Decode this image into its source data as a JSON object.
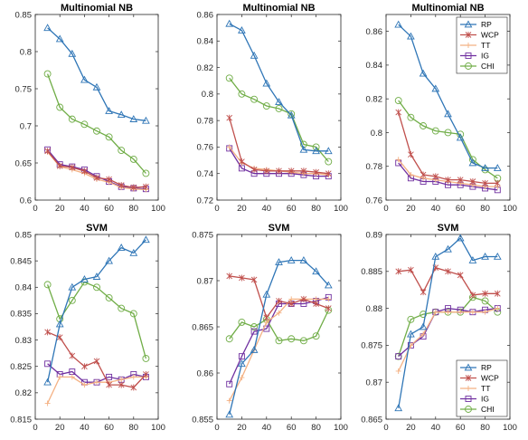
{
  "colors": {
    "RP": "#2E75B6",
    "WCP": "#C0504D",
    "TT": "#F4B183",
    "IG": "#7030A0",
    "CHI": "#70AD47"
  },
  "chart_data": [
    {
      "type": "line",
      "title": "Multinomial NB",
      "xlim": [
        0,
        100
      ],
      "xticks": [
        0,
        20,
        40,
        60,
        80,
        100
      ],
      "ylim": [
        0.6,
        0.85
      ],
      "yticks": [
        "0.6",
        "0.65",
        "0.7",
        "0.75",
        "0.8",
        "0.85"
      ],
      "grid": false,
      "legend": "",
      "x": [
        10,
        20,
        30,
        40,
        50,
        60,
        70,
        80,
        90
      ],
      "series": [
        {
          "name": "RP",
          "values": [
            0.832,
            0.817,
            0.797,
            0.762,
            0.752,
            0.72,
            0.715,
            0.709,
            0.707
          ]
        },
        {
          "name": "WCP",
          "values": [
            0.666,
            0.646,
            0.644,
            0.639,
            0.63,
            0.628,
            0.62,
            0.617,
            0.618
          ]
        },
        {
          "name": "TT",
          "values": [
            0.665,
            0.645,
            0.641,
            0.636,
            0.628,
            0.624,
            0.617,
            0.615,
            0.614
          ]
        },
        {
          "name": "IG",
          "values": [
            0.668,
            0.648,
            0.645,
            0.641,
            0.632,
            0.625,
            0.618,
            0.616,
            0.615
          ]
        },
        {
          "name": "CHI",
          "values": [
            0.77,
            0.725,
            0.709,
            0.702,
            0.693,
            0.685,
            0.667,
            0.655,
            0.636
          ]
        }
      ]
    },
    {
      "type": "line",
      "title": "Multinomial NB",
      "xlim": [
        0,
        100
      ],
      "xticks": [
        0,
        20,
        40,
        60,
        80,
        100
      ],
      "ylim": [
        0.72,
        0.86
      ],
      "yticks": [
        "0.72",
        "0.74",
        "0.76",
        "0.78",
        "0.8",
        "0.82",
        "0.84",
        "0.86"
      ],
      "grid": false,
      "legend": "",
      "x": [
        10,
        20,
        30,
        40,
        50,
        60,
        70,
        80,
        90
      ],
      "series": [
        {
          "name": "RP",
          "values": [
            0.853,
            0.848,
            0.829,
            0.808,
            0.794,
            0.784,
            0.758,
            0.757,
            0.757
          ]
        },
        {
          "name": "WCP",
          "values": [
            0.782,
            0.749,
            0.743,
            0.742,
            0.742,
            0.742,
            0.742,
            0.741,
            0.74
          ]
        },
        {
          "name": "TT",
          "values": [
            0.76,
            0.748,
            0.744,
            0.743,
            0.742,
            0.741,
            0.74,
            0.74,
            0.739
          ]
        },
        {
          "name": "IG",
          "values": [
            0.759,
            0.744,
            0.74,
            0.74,
            0.74,
            0.74,
            0.739,
            0.738,
            0.738
          ]
        },
        {
          "name": "CHI",
          "values": [
            0.812,
            0.8,
            0.796,
            0.791,
            0.789,
            0.785,
            0.762,
            0.76,
            0.749
          ]
        }
      ]
    },
    {
      "type": "line",
      "title": "Multinomial NB",
      "xlim": [
        0,
        100
      ],
      "xticks": [
        0,
        20,
        40,
        60,
        80,
        100
      ],
      "ylim": [
        0.76,
        0.87
      ],
      "yticks": [
        "0.76",
        "0.78",
        "0.8",
        "0.82",
        "0.84",
        "0.86"
      ],
      "grid": false,
      "legend": "top-right",
      "x": [
        10,
        20,
        30,
        40,
        50,
        60,
        70,
        80,
        90
      ],
      "series": [
        {
          "name": "RP",
          "values": [
            0.864,
            0.857,
            0.835,
            0.826,
            0.811,
            0.797,
            0.782,
            0.779,
            0.779
          ]
        },
        {
          "name": "WCP",
          "values": [
            0.812,
            0.787,
            0.775,
            0.774,
            0.772,
            0.772,
            0.771,
            0.77,
            0.77
          ]
        },
        {
          "name": "TT",
          "values": [
            0.784,
            0.775,
            0.773,
            0.772,
            0.771,
            0.77,
            0.769,
            0.768,
            0.768
          ]
        },
        {
          "name": "IG",
          "values": [
            0.782,
            0.773,
            0.771,
            0.771,
            0.769,
            0.769,
            0.768,
            0.767,
            0.766
          ]
        },
        {
          "name": "CHI",
          "values": [
            0.819,
            0.809,
            0.804,
            0.801,
            0.8,
            0.799,
            0.784,
            0.778,
            0.773
          ]
        }
      ]
    },
    {
      "type": "line",
      "title": "SVM",
      "xlim": [
        0,
        100
      ],
      "xticks": [
        0,
        20,
        40,
        60,
        80,
        100
      ],
      "ylim": [
        0.815,
        0.85
      ],
      "yticks": [
        "0.815",
        "0.82",
        "0.825",
        "0.83",
        "0.835",
        "0.84",
        "0.845",
        "0.85"
      ],
      "grid": false,
      "legend": "",
      "x": [
        10,
        20,
        30,
        40,
        50,
        60,
        70,
        80,
        90
      ],
      "series": [
        {
          "name": "RP",
          "values": [
            0.822,
            0.833,
            0.84,
            0.8415,
            0.842,
            0.845,
            0.8475,
            0.8465,
            0.849
          ]
        },
        {
          "name": "WCP",
          "values": [
            0.8315,
            0.8305,
            0.827,
            0.825,
            0.826,
            0.8215,
            0.8215,
            0.821,
            0.8235
          ]
        },
        {
          "name": "TT",
          "values": [
            0.818,
            0.823,
            0.823,
            0.8215,
            0.822,
            0.822,
            0.8225,
            0.823,
            0.823
          ]
        },
        {
          "name": "IG",
          "values": [
            0.8255,
            0.8235,
            0.824,
            0.822,
            0.822,
            0.823,
            0.8225,
            0.8235,
            0.823
          ]
        },
        {
          "name": "CHI",
          "values": [
            0.8405,
            0.834,
            0.8375,
            0.841,
            0.84,
            0.838,
            0.836,
            0.835,
            0.8265
          ]
        }
      ]
    },
    {
      "type": "line",
      "title": "SVM",
      "xlim": [
        0,
        100
      ],
      "xticks": [
        0,
        20,
        40,
        60,
        80,
        100
      ],
      "ylim": [
        0.855,
        0.875
      ],
      "yticks": [
        "0.855",
        "0.86",
        "0.865",
        "0.87",
        "0.875"
      ],
      "grid": false,
      "legend": "",
      "x": [
        10,
        20,
        30,
        40,
        50,
        60,
        70,
        80,
        90
      ],
      "series": [
        {
          "name": "RP",
          "values": [
            0.8555,
            0.861,
            0.8625,
            0.8685,
            0.872,
            0.8722,
            0.8722,
            0.871,
            0.8695
          ]
        },
        {
          "name": "WCP",
          "values": [
            0.8705,
            0.8703,
            0.8701,
            0.866,
            0.8678,
            0.8675,
            0.868,
            0.8675,
            0.867
          ]
        },
        {
          "name": "TT",
          "values": [
            0.857,
            0.8595,
            0.8625,
            0.8655,
            0.8665,
            0.868,
            0.868,
            0.868,
            0.868
          ]
        },
        {
          "name": "IG",
          "values": [
            0.8588,
            0.8618,
            0.8645,
            0.8648,
            0.8675,
            0.8675,
            0.8675,
            0.8678,
            0.8682
          ]
        },
        {
          "name": "CHI",
          "values": [
            0.8637,
            0.8655,
            0.865,
            0.8658,
            0.8635,
            0.8637,
            0.8635,
            0.864,
            0.8668
          ]
        }
      ]
    },
    {
      "type": "line",
      "title": "SVM",
      "xlim": [
        0,
        100
      ],
      "xticks": [
        0,
        20,
        40,
        60,
        80,
        100
      ],
      "ylim": [
        0.865,
        0.89
      ],
      "yticks": [
        "0.865",
        "0.87",
        "0.875",
        "0.88",
        "0.885",
        "0.89"
      ],
      "grid": false,
      "legend": "bottom-right",
      "x": [
        10,
        20,
        30,
        40,
        50,
        60,
        70,
        80,
        90
      ],
      "series": [
        {
          "name": "RP",
          "values": [
            0.8665,
            0.8765,
            0.8775,
            0.887,
            0.888,
            0.8895,
            0.8865,
            0.887,
            0.887
          ]
        },
        {
          "name": "WCP",
          "values": [
            0.885,
            0.8852,
            0.8822,
            0.8855,
            0.885,
            0.8845,
            0.8818,
            0.882,
            0.882
          ]
        },
        {
          "name": "TT",
          "values": [
            0.8715,
            0.875,
            0.8765,
            0.8795,
            0.8795,
            0.8795,
            0.8795,
            0.8795,
            0.88
          ]
        },
        {
          "name": "IG",
          "values": [
            0.8735,
            0.875,
            0.8762,
            0.8795,
            0.88,
            0.8798,
            0.8795,
            0.8798,
            0.88
          ]
        },
        {
          "name": "CHI",
          "values": [
            0.8735,
            0.8785,
            0.8792,
            0.8795,
            0.8795,
            0.8795,
            0.8815,
            0.881,
            0.8795
          ]
        }
      ]
    }
  ]
}
